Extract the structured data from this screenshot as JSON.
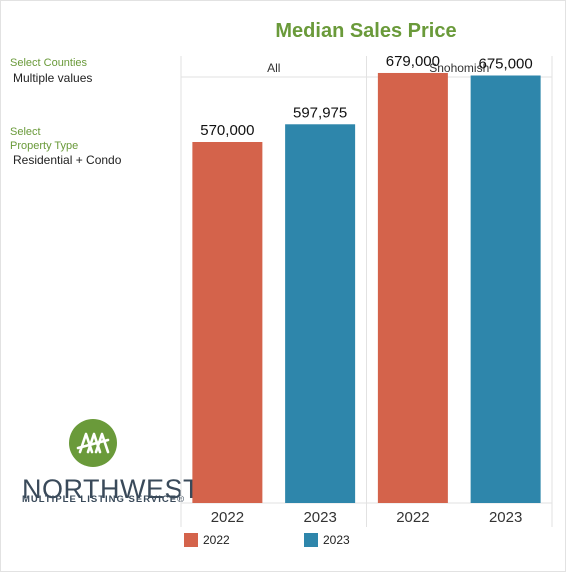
{
  "filters": {
    "counties_label": "Select Counties",
    "counties_value": "Multiple values",
    "property_label_line1": "Select",
    "property_label_line2": "Property Type",
    "property_value": "Residential + Condo"
  },
  "logo": {
    "word": "NORTHWEST",
    "sub": "MULTIPLE LISTING SERVICE®",
    "color": "#6a9a3a"
  },
  "colors": {
    "y2022": "#d4634b",
    "y2023": "#2e86ab",
    "title": "#6a9a3a",
    "grid": "#e2e2e2"
  },
  "chart_data": {
    "type": "bar",
    "title": "Median Sales Price",
    "xlabel": "",
    "ylabel": "",
    "ylim": [
      0,
      750000
    ],
    "grid": false,
    "legend_position": "bottom",
    "panels": [
      {
        "header": "All",
        "categories": [
          "2022",
          "2023"
        ],
        "values": [
          570000,
          597975
        ],
        "labels": [
          "570,000",
          "597,975"
        ]
      },
      {
        "header": "Snohomish",
        "categories": [
          "2022",
          "2023"
        ],
        "values": [
          679000,
          675000
        ],
        "labels": [
          "679,000",
          "675,000"
        ]
      }
    ],
    "legend": [
      "2022",
      "2023"
    ]
  }
}
